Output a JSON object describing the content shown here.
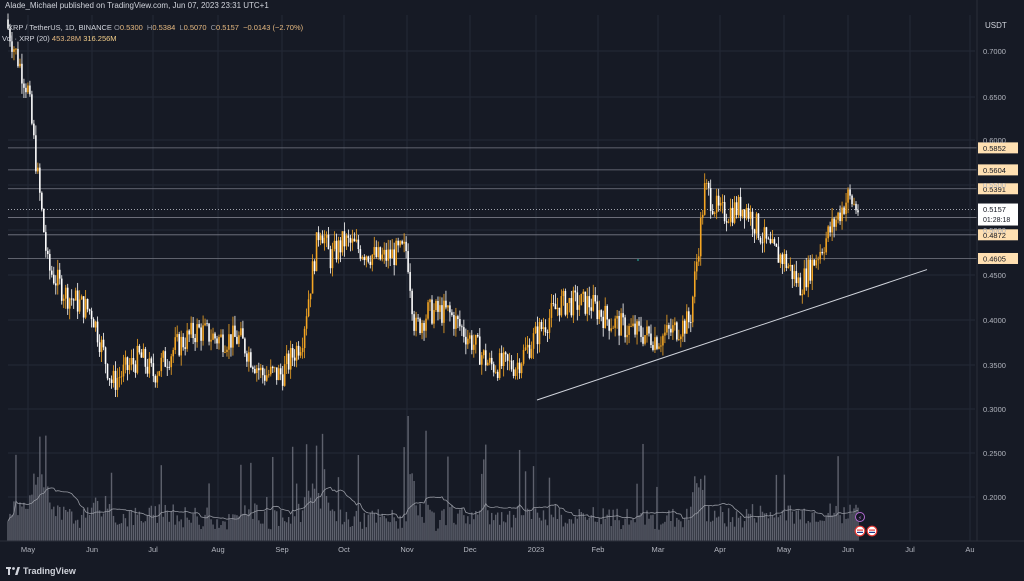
{
  "header": {
    "text": "Alade_Michael published on TradingView.com, Jun 07, 2023 23:31 UTC+1"
  },
  "legend": {
    "symbol": "XRP / TetherUS, 1D, BINANCE",
    "open_label": "O",
    "open": "0.5300",
    "high_label": "H",
    "high": "0.5384",
    "low_label": "L",
    "low": "0.5070",
    "close_label": "C",
    "close": "0.5157",
    "change": "−0.0143 (−2.70%)",
    "vol_label": "Vol · XRP (20)",
    "vol_value": "453.28M",
    "vol_ma": "316.256M"
  },
  "currency": "USDT",
  "brand": "TradingView",
  "colors": {
    "background": "#161a25",
    "up": "#f5a623",
    "down": "#ffffff",
    "grid": "#242936",
    "level_line": "#787b86",
    "trendline": "#d1d4dc",
    "label_bg": "#ffe0b2",
    "last_price_bg": "#ffffff"
  },
  "chart_data": {
    "type": "candlestick",
    "title": "XRP / TetherUS, 1D, BINANCE",
    "x_axis": {
      "ticks": [
        "May",
        "Jun",
        "Jul",
        "Aug",
        "Sep",
        "Oct",
        "Nov",
        "Dec",
        "2023",
        "Feb",
        "Mar",
        "Apr",
        "May",
        "Jun",
        "Jul",
        "Au"
      ]
    },
    "y_axis": {
      "unit": "USDT",
      "ticks": [
        0.7,
        0.65,
        0.6,
        0.55,
        0.5,
        0.45,
        0.4,
        0.35,
        0.3,
        0.25,
        0.2
      ],
      "range": [
        0.142,
        0.735
      ]
    },
    "horizontal_levels": [
      {
        "value": 0.5852,
        "label": "0.5852"
      },
      {
        "value": 0.5604,
        "label": "0.5604"
      },
      {
        "value": 0.5391,
        "label": "0.5391"
      },
      {
        "value": 0.5068,
        "label": "0.5068"
      },
      {
        "value": 0.4872,
        "label": "0.4872"
      },
      {
        "value": 0.4605,
        "label": "0.4605"
      }
    ],
    "last_price": {
      "value": 0.5157,
      "label": "0.5157",
      "countdown": "01:28:18"
    },
    "trendline": {
      "start": [
        "Jan 2023",
        0.301
      ],
      "end": [
        "Jul 2023",
        0.448
      ]
    },
    "price_path": [
      [
        "late Apr 2022",
        0.72
      ],
      [
        "early May 2022",
        0.65
      ],
      [
        "mid May 2022",
        0.45
      ],
      [
        "late May 2022",
        0.42
      ],
      [
        "early Jun 2022",
        0.4
      ],
      [
        "mid Jun 2022",
        0.32
      ],
      [
        "late Jun 2022",
        0.35
      ],
      [
        "early Jul 2022",
        0.33
      ],
      [
        "mid Jul 2022",
        0.36
      ],
      [
        "late Jul 2022",
        0.38
      ],
      [
        "early Aug 2022",
        0.37
      ],
      [
        "mid Aug 2022",
        0.37
      ],
      [
        "late Aug 2022",
        0.33
      ],
      [
        "early Sep 2022",
        0.33
      ],
      [
        "mid Sep 2022",
        0.37
      ],
      [
        "late Sep 2022",
        0.5
      ],
      [
        "early Oct 2022",
        0.46
      ],
      [
        "mid Oct 2022",
        0.48
      ],
      [
        "late Oct 2022",
        0.46
      ],
      [
        "early Nov 2022",
        0.47
      ],
      [
        "mid Nov 2022",
        0.38
      ],
      [
        "late Nov 2022",
        0.4
      ],
      [
        "early Dec 2022",
        0.4
      ],
      [
        "mid Dec 2022",
        0.37
      ],
      [
        "late Dec 2022",
        0.34
      ],
      [
        "early Jan 2023",
        0.34
      ],
      [
        "mid Jan 2023",
        0.38
      ],
      [
        "late Jan 2023",
        0.41
      ],
      [
        "early Feb 2023",
        0.41
      ],
      [
        "mid Feb 2023",
        0.39
      ],
      [
        "late Feb 2023",
        0.38
      ],
      [
        "early Mar 2023",
        0.37
      ],
      [
        "mid Mar 2023",
        0.39
      ],
      [
        "late Mar 2023",
        0.54
      ],
      [
        "early Apr 2023",
        0.51
      ],
      [
        "mid Apr 2023",
        0.52
      ],
      [
        "late Apr 2023",
        0.47
      ],
      [
        "early May 2023",
        0.46
      ],
      [
        "mid May 2023",
        0.43
      ],
      [
        "late May 2023",
        0.47
      ],
      [
        "early Jun 2023",
        0.53
      ],
      [
        "Jun 7 2023",
        0.5157
      ]
    ],
    "volume_series_name": "Vol · XRP (20)"
  }
}
